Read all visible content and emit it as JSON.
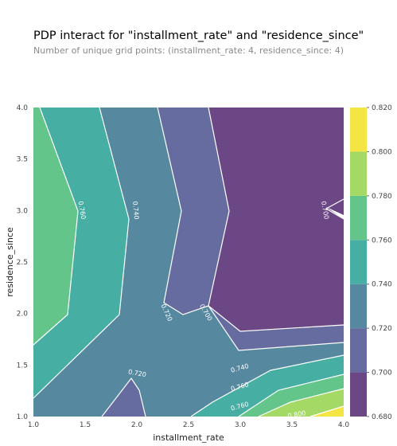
{
  "chart_data": {
    "type": "contour",
    "title": "PDP interact for \"installment_rate\" and \"residence_since\"",
    "subtitle": "Number of unique grid points: (installment_rate: 4, residence_since: 4)",
    "xlabel": "installment_rate",
    "ylabel": "residence_since",
    "xlim": [
      1.0,
      4.0
    ],
    "ylim": [
      1.0,
      4.0
    ],
    "x_ticks": [
      "1.0",
      "1.5",
      "2.0",
      "2.5",
      "3.0",
      "3.5",
      "4.0"
    ],
    "y_ticks": [
      "1.0",
      "1.5",
      "2.0",
      "2.5",
      "3.0",
      "3.5",
      "4.0"
    ],
    "levels": [
      0.68,
      0.7,
      0.72,
      0.74,
      0.76,
      0.78,
      0.8,
      0.82
    ],
    "colorbar_ticks": [
      "0.680",
      "0.700",
      "0.720",
      "0.740",
      "0.760",
      "0.780",
      "0.800",
      "0.820"
    ],
    "colors": [
      "#6b4785",
      "#666ba0",
      "#56899f",
      "#47aea4",
      "#63c58a",
      "#a5d965",
      "#f5e544"
    ],
    "contour_labels": [
      {
        "text": "0.760",
        "x": 1.45,
        "y": 3.0,
        "angle": 80
      },
      {
        "text": "0.740",
        "x": 1.97,
        "y": 3.0,
        "angle": 85
      },
      {
        "text": "0.720",
        "x": 2.27,
        "y": 2.0,
        "angle": 65
      },
      {
        "text": "0.700",
        "x": 2.65,
        "y": 2.0,
        "angle": 60
      },
      {
        "text": "0.700",
        "x": 3.8,
        "y": 3.0,
        "angle": 80
      },
      {
        "text": "0.720",
        "x": 2.0,
        "y": 1.4,
        "angle": 10
      },
      {
        "text": "0.740",
        "x": 3.0,
        "y": 1.45,
        "angle": -15
      },
      {
        "text": "0.760",
        "x": 3.0,
        "y": 1.27,
        "angle": -15
      },
      {
        "text": "0.760",
        "x": 3.0,
        "y": 1.08,
        "angle": -15
      },
      {
        "text": "0.800",
        "x": 3.55,
        "y": 1.0,
        "angle": -10
      }
    ]
  }
}
